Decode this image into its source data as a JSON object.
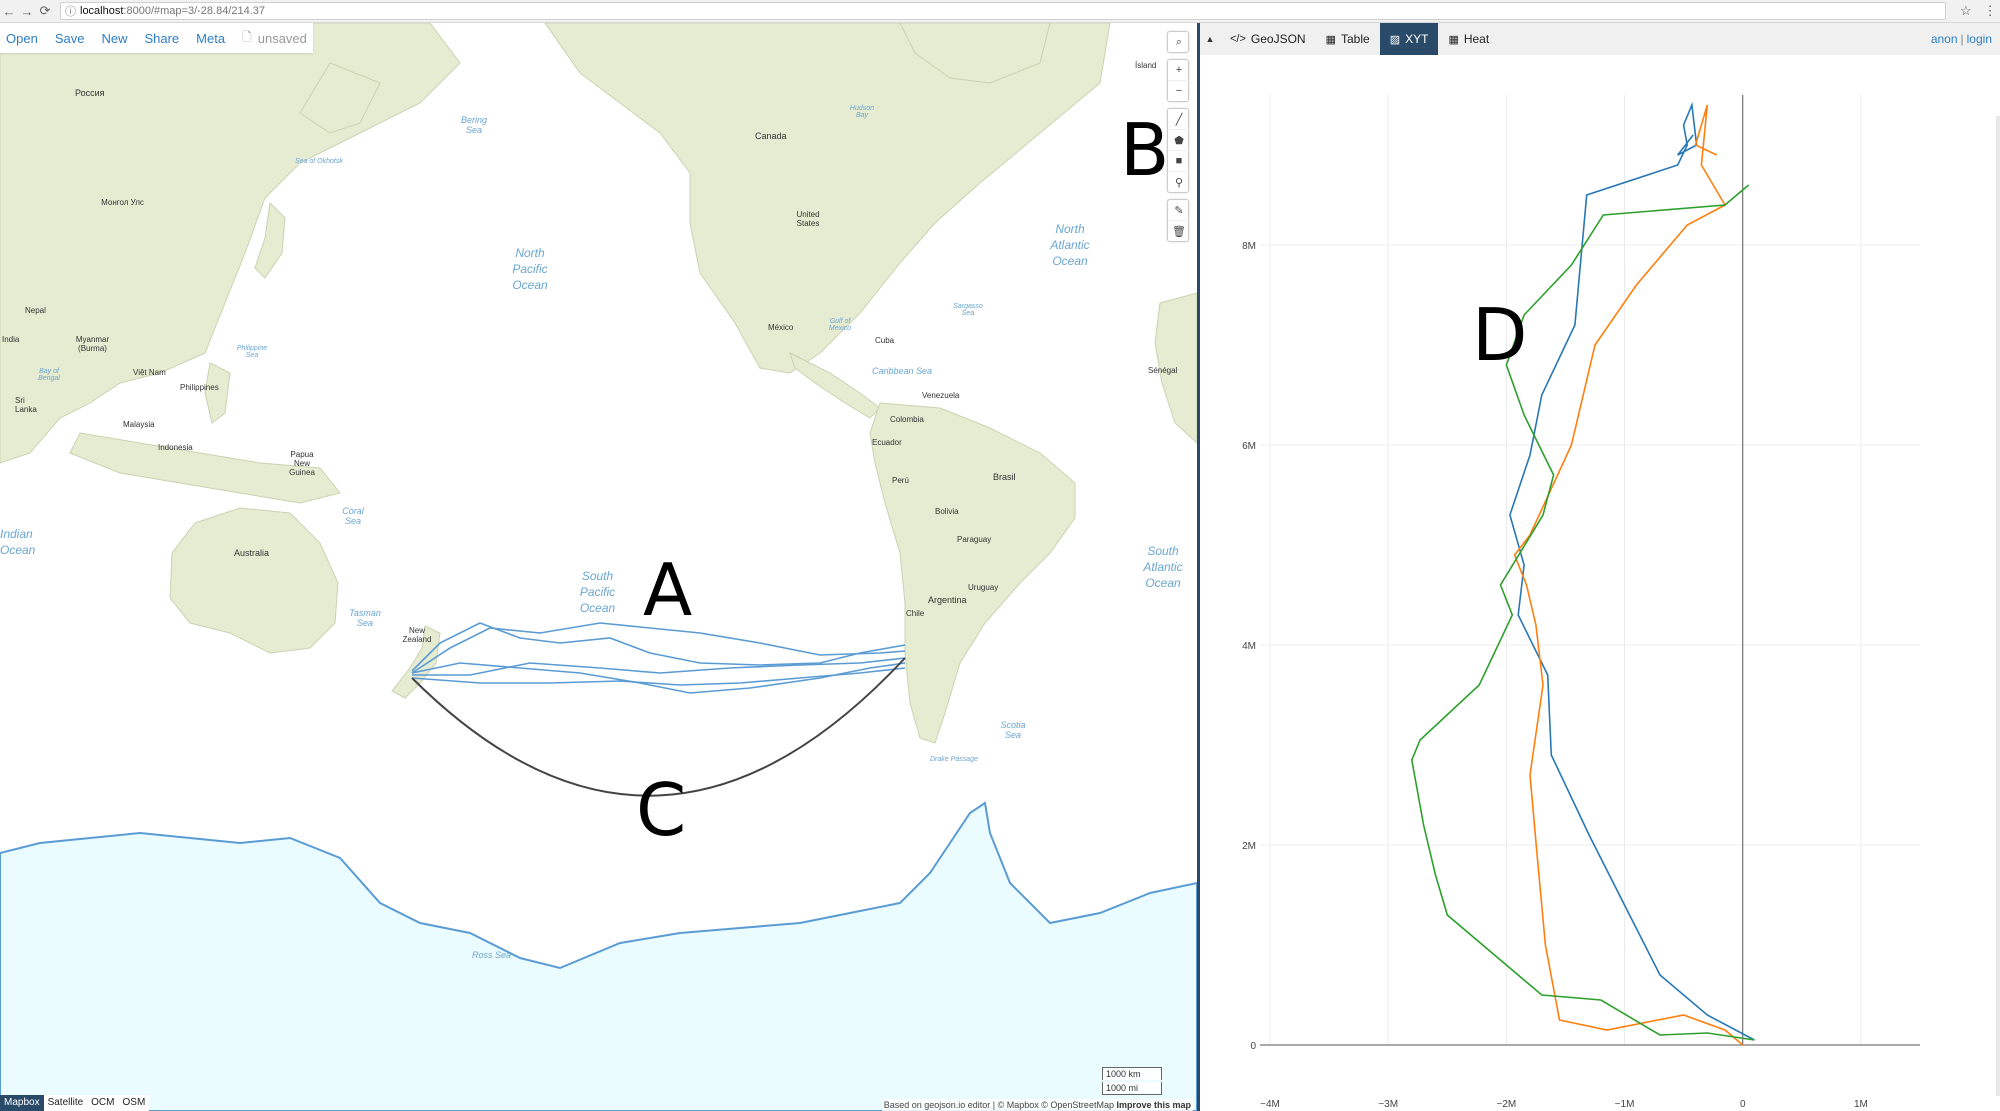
{
  "browser": {
    "back_icon": "←",
    "forward_icon": "→",
    "reload_icon": "⟳",
    "info_icon": "ⓘ",
    "url_host": "localhost",
    "url_rest": ":8000/#map=3/-28.84/214.37",
    "star_icon": "☆",
    "menu_icon": "⋮"
  },
  "menu": {
    "open": "Open",
    "save": "Save",
    "new": "New",
    "share": "Share",
    "meta": "Meta",
    "doc_icon": "🗋",
    "unsaved": "unsaved"
  },
  "map_tools": {
    "search": "⌕",
    "zoom_in": "+",
    "zoom_out": "−",
    "line": "╱",
    "polygon": "⬟",
    "rectangle": "■",
    "marker": "⚲",
    "edit": "✎",
    "delete": "🗑"
  },
  "map_labels": [
    {
      "name": "russia",
      "text": "Россия"
    },
    {
      "name": "mongolia",
      "text": "Монгол Улс"
    },
    {
      "name": "canada",
      "text": "Canada"
    },
    {
      "name": "usa",
      "text": "United States"
    },
    {
      "name": "mexico",
      "text": "México"
    },
    {
      "name": "cuba",
      "text": "Cuba"
    },
    {
      "name": "venezuela",
      "text": "Venezuela"
    },
    {
      "name": "colombia",
      "text": "Colombia"
    },
    {
      "name": "ecuador",
      "text": "Ecuador"
    },
    {
      "name": "peru",
      "text": "Perú"
    },
    {
      "name": "brasil",
      "text": "Brasil"
    },
    {
      "name": "bolivia",
      "text": "Bolivia"
    },
    {
      "name": "paraguay",
      "text": "Paraguay"
    },
    {
      "name": "uruguay",
      "text": "Uruguay"
    },
    {
      "name": "argentina",
      "text": "Argentina"
    },
    {
      "name": "chile",
      "text": "Chile"
    },
    {
      "name": "australia",
      "text": "Australia"
    },
    {
      "name": "new-zealand",
      "text": "New Zealand"
    },
    {
      "name": "india",
      "text": "India"
    },
    {
      "name": "nepal",
      "text": "Nepal"
    },
    {
      "name": "myanmar",
      "text": "Myanmar (Burma)"
    },
    {
      "name": "viet-nam",
      "text": "Việt Nam"
    },
    {
      "name": "philippines",
      "text": "Philippines"
    },
    {
      "name": "malaysia",
      "text": "Malaysia"
    },
    {
      "name": "indonesia",
      "text": "Indonesia"
    },
    {
      "name": "papua",
      "text": "Papua New Guinea"
    },
    {
      "name": "sri-lanka",
      "text": "Sri Lanka"
    },
    {
      "name": "senegal",
      "text": "Sénégal"
    },
    {
      "name": "island",
      "text": "Ísland"
    }
  ],
  "ocean_labels": [
    {
      "name": "north-pacific",
      "text": "North Pacific Ocean"
    },
    {
      "name": "south-pacific",
      "text": "South Pacific Ocean"
    },
    {
      "name": "north-atlantic",
      "text": "North Atlantic Ocean"
    },
    {
      "name": "south-atlantic",
      "text": "South Atlantic Ocean"
    },
    {
      "name": "indian-ocean",
      "text": "Indian Ocean"
    },
    {
      "name": "bering-sea",
      "text": "Bering Sea"
    },
    {
      "name": "coral-sea",
      "text": "Coral Sea"
    },
    {
      "name": "tasman-sea",
      "text": "Tasman Sea"
    },
    {
      "name": "scotia-sea",
      "text": "Scotia Sea"
    },
    {
      "name": "caribbean-sea",
      "text": "Caribbean Sea"
    },
    {
      "name": "ross-sea",
      "text": "Ross Sea"
    },
    {
      "name": "hudson-bay",
      "text": "Hudson Bay"
    },
    {
      "name": "gulf-of-mexico",
      "text": "Gulf of Mexico"
    },
    {
      "name": "sargasso-sea",
      "text": "Sargasso Sea"
    },
    {
      "name": "philippine-sea",
      "text": "Philippine Sea"
    },
    {
      "name": "sea-of-okhotsk",
      "text": "Sea of Okhotsk"
    },
    {
      "name": "drake-passage",
      "text": "Drake Passage"
    },
    {
      "name": "bay-of-bengal",
      "text": "Bay of Bengal"
    }
  ],
  "annotations": {
    "a": "A",
    "b": "B",
    "c": "C",
    "d": "D"
  },
  "layers": {
    "mapbox": "Mapbox",
    "satellite": "Satellite",
    "ocm": "OCM",
    "osm": "OSM"
  },
  "scale": {
    "km": "1000 km",
    "mi": "1000 mi"
  },
  "attribution": {
    "text": "Based on geojson.io editor | © Mapbox © OpenStreetMap",
    "improve": "Improve this map"
  },
  "tabs": {
    "collapse_icon": "▲",
    "geojson_icon": "</>",
    "geojson": "GeoJSON",
    "table_icon": "▦",
    "table": "Table",
    "xyt_icon": "▨",
    "xyt": "XYT",
    "heat_icon": "▦",
    "heat": "Heat"
  },
  "auth": {
    "anon": "anon",
    "sep": "|",
    "login": "login"
  },
  "colors": {
    "accent": "#2a4a6a",
    "link": "#2d7ec2",
    "series_blue": "#2878b5",
    "series_orange": "#ff7f0e",
    "series_green": "#2ca02c",
    "land": "#e6ecd2",
    "antarctica": "#eafcff",
    "track": "#5a9bd4",
    "arc": "#444444"
  },
  "chart_data": {
    "type": "line",
    "x_ticks": [
      "−4M",
      "−3M",
      "−2M",
      "−1M",
      "0",
      "1M"
    ],
    "y_ticks": [
      "0",
      "2M",
      "4M",
      "6M",
      "8M"
    ],
    "xlim": [
      -4000000,
      1500000
    ],
    "ylim": [
      0,
      9500000
    ],
    "grid": true,
    "series": [
      {
        "color": "#2878b5",
        "x": [
          100000,
          -300000,
          -700000,
          -1000000,
          -1300000,
          -1620000,
          -1650000,
          -1900000,
          -1850000,
          -1970000,
          -1800000,
          -1700000,
          -1420000,
          -1320000,
          -550000,
          -470000,
          -500000,
          -430000,
          -390000,
          -550000,
          -420000
        ],
        "y": [
          50000,
          300000,
          700000,
          1400000,
          2100000,
          2900000,
          3700000,
          4300000,
          4800000,
          5300000,
          5900000,
          6500000,
          7200000,
          8500000,
          8800000,
          9000000,
          9200000,
          9400000,
          9000000,
          8900000,
          9100000
        ]
      },
      {
        "color": "#ff7f0e",
        "x": [
          0,
          -150000,
          -500000,
          -1150000,
          -1550000,
          -1670000,
          -1740000,
          -1800000,
          -1690000,
          -1750000,
          -1830000,
          -1930000,
          -1800000,
          -1450000,
          -1250000,
          -900000,
          -470000,
          -150000,
          -350000,
          -300000,
          -400000,
          -220000
        ],
        "y": [
          0,
          150000,
          300000,
          150000,
          250000,
          1000000,
          1900000,
          2700000,
          3600000,
          4200000,
          4600000,
          4900000,
          5100000,
          6000000,
          7000000,
          7600000,
          8200000,
          8400000,
          8800000,
          9400000,
          9000000,
          8900000
        ]
      },
      {
        "color": "#2ca02c",
        "x": [
          100000,
          -300000,
          -700000,
          -1200000,
          -1700000,
          -2500000,
          -2600000,
          -2700000,
          -2800000,
          -2730000,
          -2230000,
          -1950000,
          -2050000,
          -1690000,
          -1600000,
          -1850000,
          -2000000,
          -1850000,
          -1450000,
          -1180000,
          -150000,
          50000
        ],
        "y": [
          50000,
          120000,
          100000,
          450000,
          500000,
          1300000,
          1700000,
          2200000,
          2850000,
          3050000,
          3600000,
          4300000,
          4600000,
          5300000,
          5700000,
          6300000,
          6800000,
          7300000,
          7800000,
          8300000,
          8400000,
          8600000
        ]
      }
    ]
  }
}
